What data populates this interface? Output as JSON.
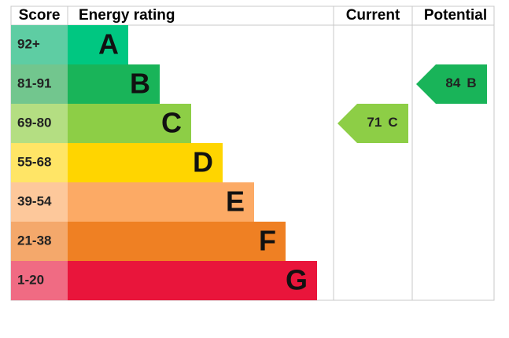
{
  "chart_data": {
    "type": "epc",
    "headers": [
      "Score",
      "Energy rating",
      "Current",
      "Potential"
    ],
    "bands": [
      {
        "score": "92+",
        "rating": "A",
        "color": "#00c781",
        "light": "#5ecda3"
      },
      {
        "score": "81-91",
        "rating": "B",
        "color": "#19b459",
        "light": "#72c68e"
      },
      {
        "score": "69-80",
        "rating": "C",
        "color": "#8dce46",
        "light": "#b4de82"
      },
      {
        "score": "55-68",
        "rating": "D",
        "color": "#ffd500",
        "light": "#ffe566"
      },
      {
        "score": "39-54",
        "rating": "E",
        "color": "#fcaa65",
        "light": "#fdc89b"
      },
      {
        "score": "21-38",
        "rating": "F",
        "color": "#ef8023",
        "light": "#f4a86b"
      },
      {
        "score": "1-20",
        "rating": "G",
        "color": "#e9153b",
        "light": "#f06b83"
      }
    ],
    "current": {
      "value": 71,
      "rating": "C"
    },
    "potential": {
      "value": 84,
      "rating": "B"
    }
  }
}
